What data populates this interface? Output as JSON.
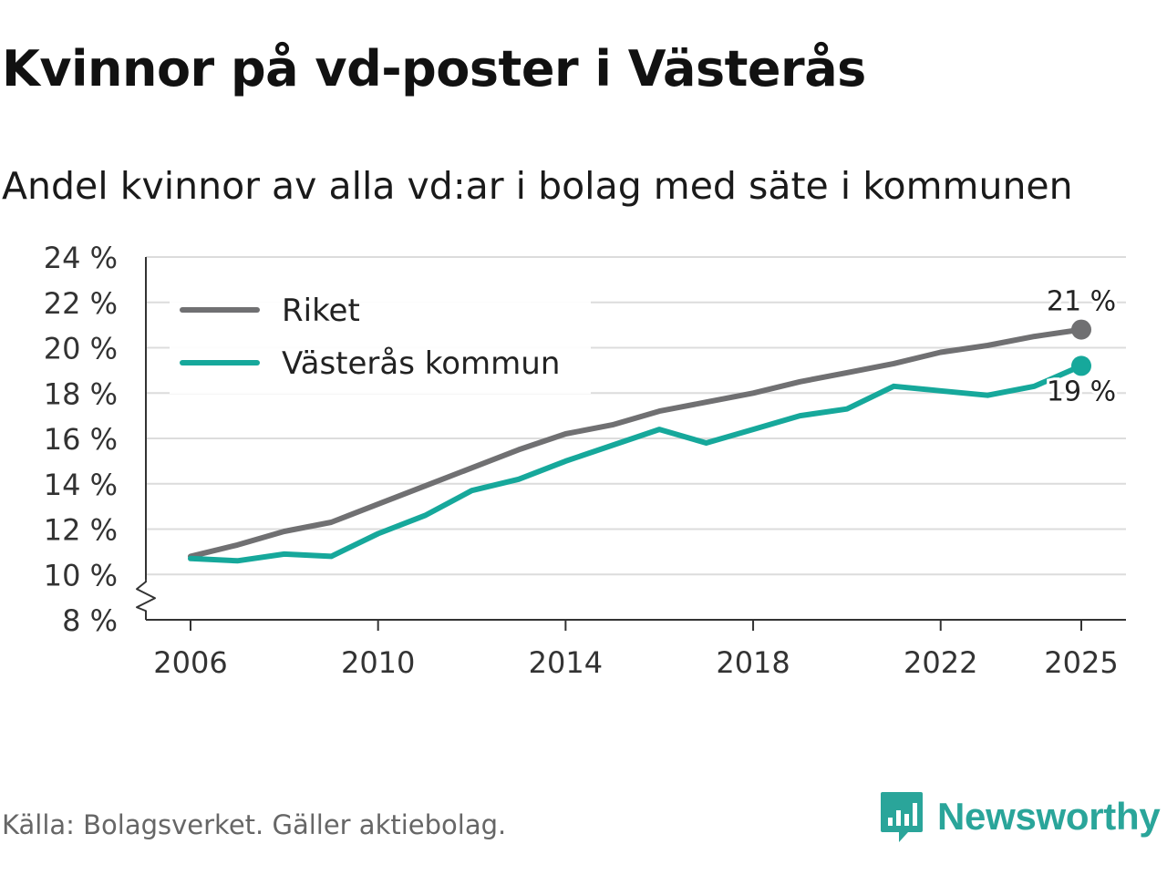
{
  "title": "Kvinnor på vd-poster i Västerås",
  "subtitle": "Andel kvinnor av alla vd:ar i bolag med säte i kommunen",
  "source": "Källa: Bolagsverket. Gäller aktiebolag.",
  "brand": {
    "name": "Newsworthy",
    "icon": "newsworthy-logo-icon"
  },
  "colors": {
    "riket": "#707072",
    "vasteras": "#16a89b",
    "grid": "#dcdcdc",
    "axis": "#333333",
    "brand": "#2aa59a"
  },
  "chart_data": {
    "type": "line",
    "title": "Kvinnor på vd-poster i Västerås",
    "xlabel": "",
    "ylabel": "",
    "ylim": [
      8,
      24
    ],
    "xlim": [
      2006,
      2025
    ],
    "y_axis_break": true,
    "grid": true,
    "legend_position": "top-left",
    "x_ticks": [
      2006,
      2010,
      2014,
      2018,
      2022,
      2025
    ],
    "x_tick_labels": [
      "2006",
      "2010",
      "2014",
      "2018",
      "2022",
      "2025"
    ],
    "y_ticks": [
      8,
      10,
      12,
      14,
      16,
      18,
      20,
      22,
      24
    ],
    "y_tick_labels": [
      "8 %",
      "10 %",
      "12 %",
      "14 %",
      "16 %",
      "18 %",
      "20 %",
      "22 %",
      "24 %"
    ],
    "x": [
      2006,
      2007,
      2008,
      2009,
      2010,
      2011,
      2012,
      2013,
      2014,
      2015,
      2016,
      2017,
      2018,
      2019,
      2020,
      2021,
      2022,
      2023,
      2024,
      2025
    ],
    "series": [
      {
        "name": "Riket",
        "color": "#707072",
        "values": [
          10.8,
          11.3,
          11.9,
          12.3,
          13.1,
          13.9,
          14.7,
          15.5,
          16.2,
          16.6,
          17.2,
          17.6,
          18.0,
          18.5,
          18.9,
          19.3,
          19.8,
          20.1,
          20.5,
          20.8
        ],
        "end_label": "21 %",
        "end_label_position": "above"
      },
      {
        "name": "Västerås kommun",
        "color": "#16a89b",
        "values": [
          10.7,
          10.6,
          10.9,
          10.8,
          11.8,
          12.6,
          13.7,
          14.2,
          15.0,
          15.7,
          16.4,
          15.8,
          16.4,
          17.0,
          17.3,
          18.3,
          18.1,
          17.9,
          18.3,
          19.2
        ],
        "end_label": "19 %",
        "end_label_position": "below"
      }
    ]
  }
}
